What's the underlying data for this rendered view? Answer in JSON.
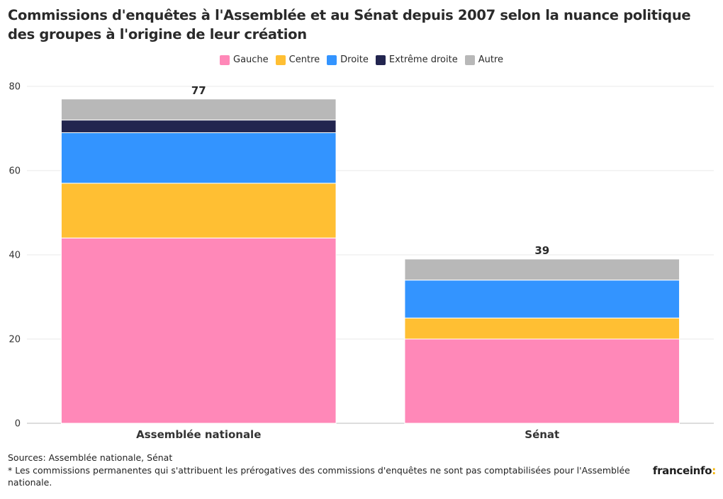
{
  "title": "Commissions d'enquêtes à l'Assemblée et au Sénat depuis 2007 selon la nuance politique des groupes à l'origine de leur création",
  "footer": {
    "sources": "Sources: Assemblée nationale, Sénat",
    "note": "* Les commissions permanentes qui s'attribuent les prérogatives des commissions d'enquêtes ne sont pas comptabilisées pour l'Assemblée nationale."
  },
  "brand": {
    "name": "franceinfo",
    "suffix": ":"
  },
  "chart_data": {
    "type": "bar",
    "stacked": true,
    "categories": [
      "Assemblée nationale",
      "Sénat"
    ],
    "series": [
      {
        "name": "Gauche",
        "color": "#ff88b8",
        "values": [
          44,
          20
        ]
      },
      {
        "name": "Centre",
        "color": "#ffbf33",
        "values": [
          13,
          5
        ]
      },
      {
        "name": "Droite",
        "color": "#3394ff",
        "values": [
          12,
          9
        ]
      },
      {
        "name": "Extrême droite",
        "color": "#22254f",
        "values": [
          3,
          0
        ]
      },
      {
        "name": "Autre",
        "color": "#b8b8b8",
        "values": [
          5,
          5
        ]
      }
    ],
    "totals": [
      77,
      39
    ],
    "ylim": [
      0,
      80
    ],
    "yticks": [
      0,
      20,
      40,
      60,
      80
    ],
    "grid": true,
    "legend_position": "top-center",
    "xlabel": "",
    "ylabel": ""
  }
}
